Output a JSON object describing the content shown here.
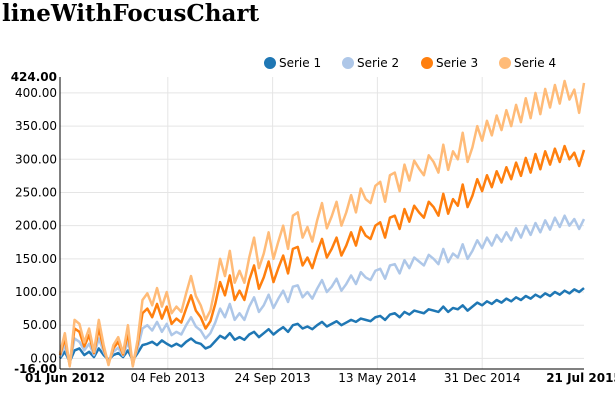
{
  "title": "lineWithFocusChart",
  "chart_data": {
    "type": "line",
    "ylim": [
      -16.0,
      424.0
    ],
    "y_ticks": [
      {
        "value": 424.0,
        "label": "424.00",
        "bold": true
      },
      {
        "value": 400,
        "label": "400.00"
      },
      {
        "value": 350,
        "label": "350.00"
      },
      {
        "value": 300,
        "label": "300.00"
      },
      {
        "value": 250,
        "label": "250.00"
      },
      {
        "value": 200,
        "label": "200.00"
      },
      {
        "value": 150,
        "label": "150.00"
      },
      {
        "value": 100,
        "label": "100.00"
      },
      {
        "value": 50,
        "label": "50.00"
      },
      {
        "value": 0,
        "label": "0.00"
      },
      {
        "value": -16.0,
        "label": "-16.00",
        "bold": true
      }
    ],
    "x_ticks": [
      {
        "label": "01 Jun 2012",
        "bold": true
      },
      {
        "label": "04 Feb 2013"
      },
      {
        "label": "24 Sep 2013"
      },
      {
        "label": "13 May 2014"
      },
      {
        "label": "31 Dec 2014"
      },
      {
        "label": "21 Jul 2015",
        "bold": true
      }
    ],
    "x_range": [
      "2012-06-01",
      "2015-07-21"
    ],
    "grid": true,
    "legend_position": "top-right",
    "series": [
      {
        "name": "Serie 1",
        "color": "#1f77b4",
        "values": [
          0,
          10,
          -5,
          12,
          15,
          5,
          10,
          2,
          15,
          5,
          -2,
          5,
          8,
          2,
          12,
          -3,
          8,
          20,
          22,
          25,
          20,
          27,
          22,
          18,
          22,
          18,
          25,
          30,
          24,
          22,
          15,
          18,
          26,
          34,
          30,
          38,
          28,
          32,
          28,
          36,
          40,
          32,
          38,
          44,
          36,
          42,
          47,
          40,
          50,
          52,
          45,
          48,
          44,
          50,
          55,
          48,
          52,
          56,
          50,
          54,
          58,
          55,
          60,
          58,
          56,
          62,
          64,
          58,
          66,
          68,
          62,
          70,
          66,
          72,
          70,
          68,
          74,
          72,
          70,
          78,
          70,
          76,
          74,
          80,
          72,
          78,
          84,
          80,
          86,
          82,
          88,
          84,
          90,
          86,
          92,
          88,
          94,
          90,
          96,
          92,
          98,
          94,
          100,
          96,
          102,
          98,
          104,
          100,
          106
        ]
      },
      {
        "name": "Serie 2",
        "color": "#aec7e8",
        "values": [
          2,
          20,
          -8,
          30,
          25,
          12,
          22,
          5,
          30,
          10,
          -5,
          10,
          16,
          4,
          25,
          -6,
          15,
          45,
          50,
          42,
          55,
          40,
          52,
          35,
          40,
          36,
          50,
          62,
          48,
          42,
          30,
          38,
          54,
          75,
          62,
          82,
          58,
          68,
          58,
          78,
          92,
          70,
          80,
          96,
          76,
          90,
          102,
          85,
          108,
          110,
          92,
          100,
          90,
          105,
          118,
          100,
          108,
          120,
          102,
          112,
          125,
          112,
          130,
          122,
          118,
          132,
          135,
          120,
          140,
          142,
          128,
          148,
          136,
          152,
          146,
          140,
          156,
          150,
          142,
          165,
          145,
          158,
          152,
          172,
          150,
          162,
          178,
          166,
          182,
          170,
          186,
          176,
          190,
          178,
          196,
          182,
          200,
          186,
          204,
          190,
          208,
          194,
          212,
          198,
          215,
          200,
          210,
          195,
          210
        ]
      },
      {
        "name": "Serie 3",
        "color": "#ff7f0e",
        "values": [
          5,
          30,
          -10,
          45,
          40,
          18,
          35,
          8,
          45,
          15,
          -8,
          15,
          25,
          6,
          38,
          -10,
          22,
          68,
          75,
          62,
          82,
          60,
          78,
          52,
          60,
          54,
          75,
          95,
          72,
          62,
          45,
          56,
          82,
          115,
          95,
          125,
          88,
          102,
          88,
          118,
          140,
          105,
          122,
          146,
          115,
          136,
          155,
          128,
          165,
          168,
          140,
          152,
          136,
          160,
          180,
          152,
          165,
          182,
          155,
          170,
          190,
          170,
          198,
          185,
          180,
          200,
          205,
          182,
          212,
          215,
          195,
          225,
          206,
          230,
          220,
          212,
          236,
          228,
          215,
          248,
          218,
          240,
          230,
          262,
          228,
          245,
          270,
          252,
          276,
          258,
          282,
          265,
          288,
          270,
          295,
          275,
          302,
          280,
          308,
          285,
          312,
          292,
          316,
          296,
          320,
          300,
          310,
          290,
          314
        ]
      },
      {
        "name": "Serie 4",
        "color": "#ffbb78",
        "values": [
          8,
          38,
          -12,
          58,
          52,
          24,
          45,
          10,
          58,
          20,
          -10,
          20,
          32,
          8,
          50,
          -12,
          28,
          88,
          98,
          80,
          106,
          78,
          100,
          68,
          78,
          70,
          98,
          124,
          94,
          80,
          58,
          72,
          108,
          150,
          124,
          162,
          114,
          132,
          114,
          152,
          182,
          136,
          158,
          190,
          150,
          176,
          200,
          165,
          215,
          220,
          182,
          198,
          176,
          208,
          234,
          196,
          214,
          236,
          200,
          220,
          246,
          220,
          256,
          240,
          234,
          260,
          266,
          236,
          276,
          280,
          252,
          292,
          268,
          298,
          286,
          276,
          306,
          296,
          280,
          322,
          284,
          312,
          300,
          340,
          296,
          318,
          350,
          328,
          358,
          336,
          366,
          344,
          374,
          350,
          382,
          356,
          392,
          362,
          400,
          368,
          406,
          378,
          412,
          384,
          418,
          390,
          405,
          370,
          415
        ]
      }
    ]
  }
}
